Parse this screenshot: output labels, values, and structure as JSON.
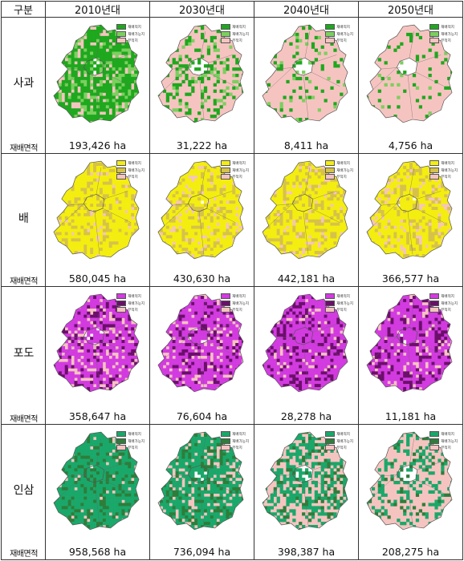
{
  "header": {
    "corner": "구분",
    "periods": [
      "2010년대",
      "2030년대",
      "2040년대",
      "2050년대"
    ]
  },
  "area_label": "재배면적",
  "legend_labels": [
    "재배적지",
    "재배가능지",
    "부적지"
  ],
  "unit": "ha",
  "crops": [
    {
      "name": "사과",
      "colors": [
        "#1ea81e",
        "#7ccf5f",
        "#f6c4c0"
      ],
      "values": [
        "193,426",
        "31,222",
        "8,411",
        "4,756"
      ],
      "suitable_level": [
        0.85,
        0.3,
        0.15,
        0.1
      ]
    },
    {
      "name": "배",
      "colors": [
        "#f4ee10",
        "#d6c24a",
        "#f6c4c0"
      ],
      "values": [
        "580,045",
        "430,630",
        "442,181",
        "366,577"
      ],
      "suitable_level": [
        0.95,
        0.9,
        0.9,
        0.85
      ]
    },
    {
      "name": "포도",
      "colors": [
        "#d23be0",
        "#6b0f6b",
        "#f6c4c0"
      ],
      "values": [
        "358,647",
        "76,604",
        "28,278",
        "11,181"
      ],
      "suitable_level": [
        0.8,
        0.85,
        0.9,
        0.9
      ]
    },
    {
      "name": "인삼",
      "colors": [
        "#1aa86a",
        "#2e7d3a",
        "#f6c4c0"
      ],
      "values": [
        "958,568",
        "736,094",
        "398,387",
        "208,275"
      ],
      "suitable_level": [
        0.95,
        0.8,
        0.5,
        0.3
      ]
    }
  ]
}
